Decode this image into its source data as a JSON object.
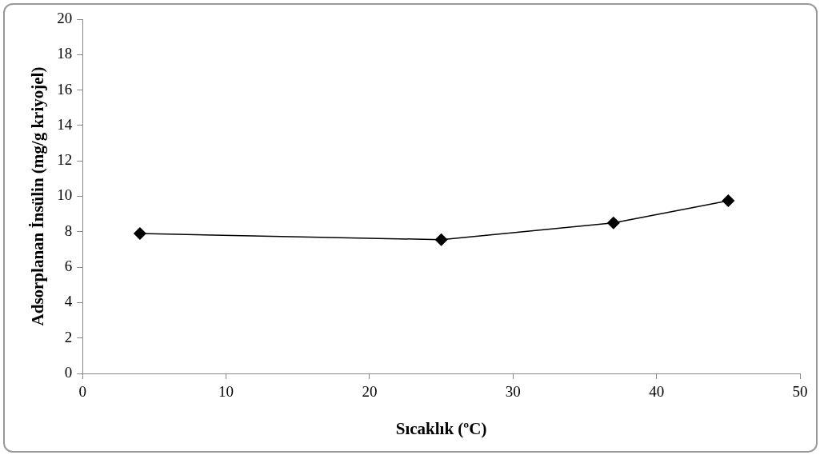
{
  "chart_data": {
    "type": "line",
    "xlabel": "Sıcaklık (ºC)",
    "ylabel": "Adsorplanan İnsülin (mg/g kriyojel)",
    "x": [
      4,
      25,
      37,
      45
    ],
    "series": [
      {
        "color": "#000000",
        "values": [
          7.9,
          7.55,
          8.5,
          9.75
        ]
      }
    ],
    "xlim": [
      0,
      50
    ],
    "xticks": [
      0,
      10,
      20,
      30,
      40,
      50
    ],
    "ylim": [
      0,
      20
    ],
    "yticks": [
      0,
      2,
      4,
      6,
      8,
      10,
      12,
      14,
      16,
      18,
      20
    ],
    "grid": false,
    "legend": false,
    "marker": "diamond",
    "line_style": "solid"
  }
}
